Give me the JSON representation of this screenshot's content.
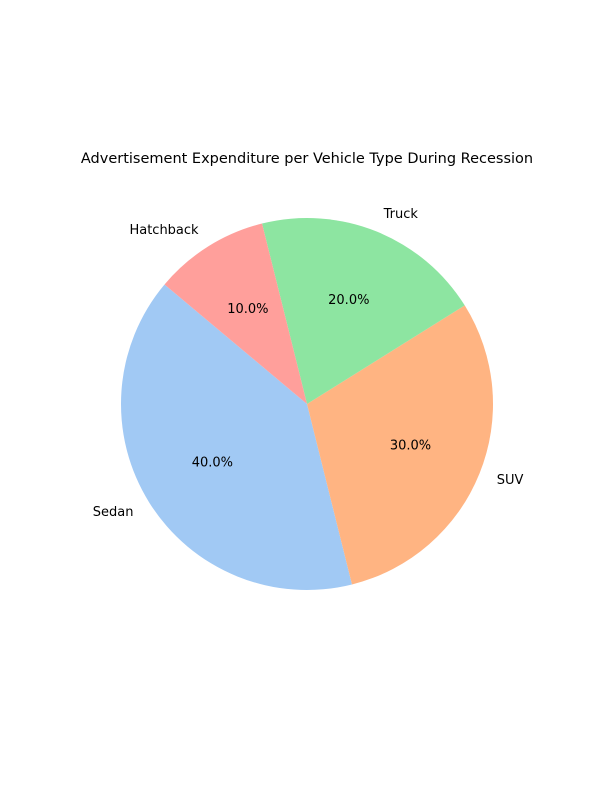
{
  "chart_data": {
    "type": "pie",
    "title": "Advertisement Expenditure per Vehicle Type During Recession",
    "labels": [
      "Sedan",
      "SUV",
      "Truck",
      "Hatchback"
    ],
    "values": [
      40,
      30,
      20,
      10
    ],
    "percent_labels": [
      "40.0%",
      "30.0%",
      "20.0%",
      "10.0%"
    ],
    "colors": [
      "#a1c9f4",
      "#ffb482",
      "#8de5a1",
      "#ff9f9b"
    ],
    "start_angle_deg": 140,
    "direction": "counterclockwise",
    "legend": "none"
  }
}
